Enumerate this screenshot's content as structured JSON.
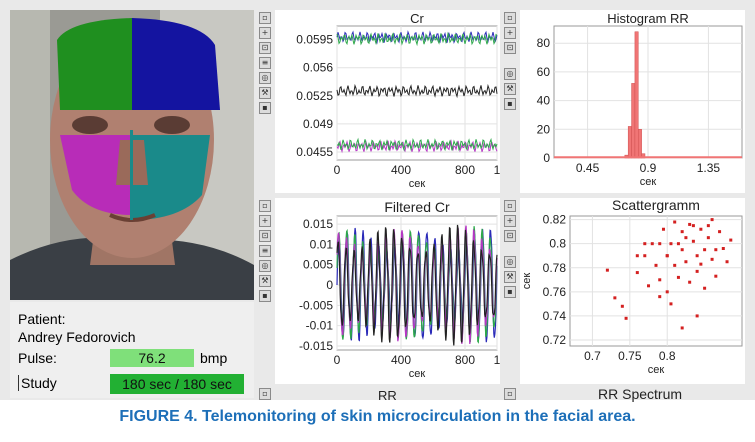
{
  "caption": "FIGURE 4. Telemonitoring of skin microcirculation in the facial area.",
  "patient": {
    "label": "Patient:",
    "name": "Andrey Fedorovich",
    "pulse_label": "Pulse:",
    "pulse_value": "76.2",
    "pulse_unit": "bmp",
    "study_label": "Study",
    "study_value": "180 sec / 180 sec"
  },
  "toolbar_icons": [
    "save-icon-top",
    "grid-icon",
    "zoom-icon",
    "legend-icon",
    "target-icon",
    "wrench-icon",
    "disk-icon"
  ],
  "chart_data": [
    {
      "type": "line",
      "title": "Cr",
      "xlabel": "сек",
      "x_ticks": [
        "0",
        "400",
        "800",
        "1"
      ],
      "y_ticks": [
        "0.0595",
        "0.056",
        "0.0525",
        "0.049",
        "0.0455"
      ],
      "ylim": [
        0.0445,
        0.0612
      ],
      "xlim": [
        0,
        1000
      ],
      "series": [
        {
          "values_base": 0.0598,
          "color": "#2a2ab8"
        },
        {
          "values_base": 0.0596,
          "color": "#2da84a"
        },
        {
          "values_base": 0.0531,
          "color": "#222222"
        },
        {
          "values_base": 0.0462,
          "color": "#b637c5"
        },
        {
          "values_base": 0.0464,
          "color": "#2da84a"
        }
      ]
    },
    {
      "type": "bar",
      "title": "Histogram RR",
      "xlabel": "сек",
      "x_ticks": [
        "0.45",
        "0.9",
        "1.35"
      ],
      "y_ticks": [
        "80",
        "60",
        "40",
        "20",
        "0"
      ],
      "ylim": [
        0,
        92
      ],
      "xlim": [
        0.2,
        1.6
      ],
      "bins": [
        {
          "x": 0.74,
          "y": 2
        },
        {
          "x": 0.765,
          "y": 22
        },
        {
          "x": 0.79,
          "y": 52
        },
        {
          "x": 0.815,
          "y": 88
        },
        {
          "x": 0.84,
          "y": 20
        },
        {
          "x": 0.865,
          "y": 3
        }
      ],
      "bin_width": 0.025,
      "color": "#f07575"
    },
    {
      "type": "line",
      "title": "Filtered Cr",
      "xlabel": "сек",
      "x_ticks": [
        "0",
        "400",
        "800",
        "1"
      ],
      "y_ticks": [
        "0.015",
        "0.01",
        "0.005",
        "0",
        "-0.005",
        "-0.01",
        "-0.015"
      ],
      "ylim": [
        -0.016,
        0.017
      ],
      "xlim": [
        0,
        1000
      ],
      "series": [
        {
          "color": "#2a2ab8"
        },
        {
          "color": "#2da84a"
        },
        {
          "color": "#b637c5"
        },
        {
          "color": "#222222"
        }
      ]
    },
    {
      "type": "scatter",
      "title": "Scattergramm",
      "xlabel": "сек",
      "ylabel": "сек",
      "x_ticks": [
        "0.7",
        "0.75",
        "0.8"
      ],
      "y_ticks": [
        "0.82",
        "0.8",
        "0.78",
        "0.76",
        "0.74",
        "0.72"
      ],
      "xlim": [
        0.67,
        0.9
      ],
      "ylim": [
        0.715,
        0.823
      ],
      "points": [
        [
          0.72,
          0.778
        ],
        [
          0.73,
          0.755
        ],
        [
          0.74,
          0.748
        ],
        [
          0.745,
          0.738
        ],
        [
          0.76,
          0.776
        ],
        [
          0.77,
          0.79
        ],
        [
          0.775,
          0.765
        ],
        [
          0.78,
          0.8
        ],
        [
          0.785,
          0.782
        ],
        [
          0.79,
          0.77
        ],
        [
          0.795,
          0.812
        ],
        [
          0.8,
          0.79
        ],
        [
          0.8,
          0.76
        ],
        [
          0.805,
          0.8
        ],
        [
          0.81,
          0.818
        ],
        [
          0.81,
          0.782
        ],
        [
          0.815,
          0.772
        ],
        [
          0.82,
          0.81
        ],
        [
          0.82,
          0.795
        ],
        [
          0.825,
          0.785
        ],
        [
          0.83,
          0.816
        ],
        [
          0.83,
          0.768
        ],
        [
          0.835,
          0.802
        ],
        [
          0.84,
          0.79
        ],
        [
          0.84,
          0.777
        ],
        [
          0.845,
          0.812
        ],
        [
          0.85,
          0.795
        ],
        [
          0.85,
          0.763
        ],
        [
          0.855,
          0.805
        ],
        [
          0.86,
          0.787
        ],
        [
          0.86,
          0.82
        ],
        [
          0.865,
          0.773
        ],
        [
          0.87,
          0.81
        ],
        [
          0.875,
          0.796
        ],
        [
          0.88,
          0.785
        ],
        [
          0.885,
          0.803
        ],
        [
          0.79,
          0.756
        ],
        [
          0.805,
          0.75
        ],
        [
          0.77,
          0.8
        ],
        [
          0.76,
          0.79
        ],
        [
          0.815,
          0.8
        ],
        [
          0.825,
          0.805
        ],
        [
          0.835,
          0.815
        ],
        [
          0.845,
          0.783
        ],
        [
          0.855,
          0.815
        ],
        [
          0.865,
          0.795
        ],
        [
          0.84,
          0.74
        ],
        [
          0.82,
          0.73
        ],
        [
          0.8,
          0.79
        ],
        [
          0.79,
          0.8
        ]
      ],
      "color": "#d42020"
    }
  ],
  "bottom_labels": {
    "rr": "RR",
    "rr_spectrum": "RR Spectrum"
  }
}
